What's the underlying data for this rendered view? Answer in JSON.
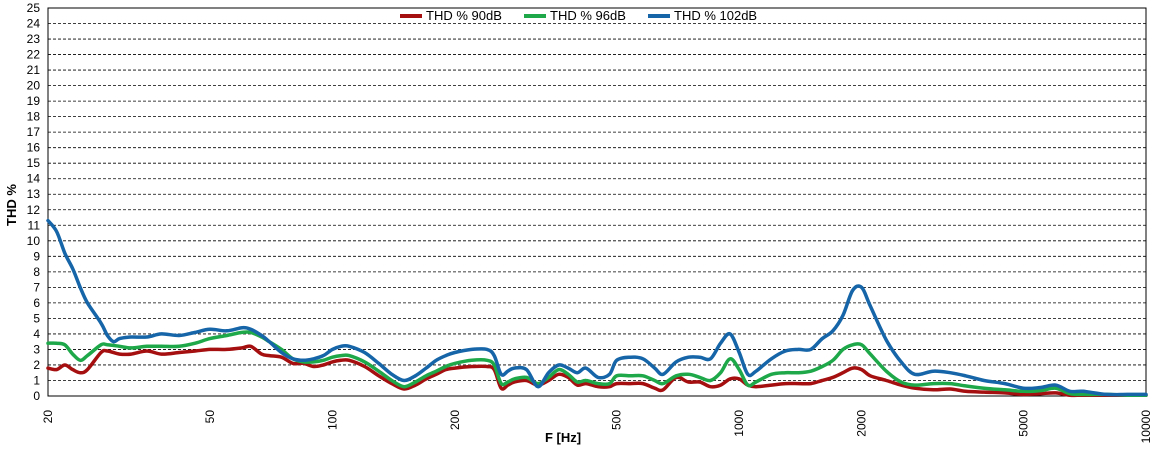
{
  "chart_data": {
    "type": "line",
    "title": "",
    "xlabel": "F [Hz]",
    "ylabel": "THD %",
    "xscale": "log",
    "xlim": [
      20,
      10000
    ],
    "ylim": [
      0,
      25
    ],
    "grid": true,
    "legend_position": "top-center",
    "x_ticks": [
      20,
      50,
      100,
      200,
      500,
      1000,
      2000,
      5000,
      10000
    ],
    "y_ticks": [
      0,
      1,
      2,
      3,
      4,
      5,
      6,
      7,
      8,
      9,
      10,
      11,
      12,
      13,
      14,
      15,
      16,
      17,
      18,
      19,
      20,
      21,
      22,
      23,
      24,
      25
    ],
    "series": [
      {
        "name": "THD % 90dB",
        "color": "#a50f0f",
        "points": [
          [
            20,
            1.8
          ],
          [
            21,
            1.7
          ],
          [
            22,
            2.0
          ],
          [
            23,
            1.7
          ],
          [
            24,
            1.5
          ],
          [
            25,
            1.7
          ],
          [
            27,
            2.8
          ],
          [
            28,
            2.9
          ],
          [
            30,
            2.7
          ],
          [
            32,
            2.7
          ],
          [
            35,
            2.9
          ],
          [
            38,
            2.7
          ],
          [
            42,
            2.8
          ],
          [
            46,
            2.9
          ],
          [
            50,
            3.0
          ],
          [
            55,
            3.0
          ],
          [
            60,
            3.1
          ],
          [
            63,
            3.2
          ],
          [
            67,
            2.7
          ],
          [
            70,
            2.6
          ],
          [
            75,
            2.5
          ],
          [
            80,
            2.1
          ],
          [
            85,
            2.1
          ],
          [
            90,
            1.9
          ],
          [
            95,
            2.0
          ],
          [
            100,
            2.2
          ],
          [
            105,
            2.3
          ],
          [
            110,
            2.3
          ],
          [
            120,
            1.9
          ],
          [
            130,
            1.3
          ],
          [
            140,
            0.8
          ],
          [
            150,
            0.45
          ],
          [
            160,
            0.7
          ],
          [
            170,
            1.1
          ],
          [
            180,
            1.4
          ],
          [
            190,
            1.7
          ],
          [
            200,
            1.8
          ],
          [
            220,
            1.9
          ],
          [
            240,
            1.9
          ],
          [
            250,
            1.7
          ],
          [
            260,
            0.5
          ],
          [
            270,
            0.7
          ],
          [
            280,
            0.9
          ],
          [
            300,
            1.0
          ],
          [
            320,
            0.7
          ],
          [
            340,
            1.0
          ],
          [
            360,
            1.4
          ],
          [
            380,
            1.2
          ],
          [
            400,
            0.7
          ],
          [
            420,
            0.8
          ],
          [
            450,
            0.6
          ],
          [
            480,
            0.6
          ],
          [
            500,
            0.8
          ],
          [
            540,
            0.8
          ],
          [
            580,
            0.8
          ],
          [
            620,
            0.5
          ],
          [
            650,
            0.4
          ],
          [
            700,
            1.2
          ],
          [
            750,
            0.9
          ],
          [
            800,
            0.9
          ],
          [
            850,
            0.6
          ],
          [
            900,
            0.7
          ],
          [
            950,
            1.1
          ],
          [
            1000,
            1.1
          ],
          [
            1050,
            0.7
          ],
          [
            1100,
            0.6
          ],
          [
            1200,
            0.7
          ],
          [
            1300,
            0.8
          ],
          [
            1400,
            0.8
          ],
          [
            1500,
            0.8
          ],
          [
            1600,
            1.0
          ],
          [
            1700,
            1.2
          ],
          [
            1800,
            1.5
          ],
          [
            1900,
            1.8
          ],
          [
            2000,
            1.7
          ],
          [
            2100,
            1.3
          ],
          [
            2300,
            1.0
          ],
          [
            2500,
            0.7
          ],
          [
            2700,
            0.5
          ],
          [
            3000,
            0.4
          ],
          [
            3300,
            0.45
          ],
          [
            3600,
            0.3
          ],
          [
            4000,
            0.25
          ],
          [
            4500,
            0.2
          ],
          [
            5000,
            0.1
          ],
          [
            5500,
            0.15
          ],
          [
            6000,
            0.2
          ],
          [
            6500,
            0.05
          ],
          [
            7000,
            0.05
          ],
          [
            8000,
            0.05
          ],
          [
            9000,
            0.05
          ],
          [
            10000,
            0.05
          ]
        ]
      },
      {
        "name": "THD % 96dB",
        "color": "#1ea84a",
        "points": [
          [
            20,
            3.4
          ],
          [
            21,
            3.4
          ],
          [
            22,
            3.3
          ],
          [
            23,
            2.7
          ],
          [
            24,
            2.3
          ],
          [
            25,
            2.6
          ],
          [
            27,
            3.3
          ],
          [
            28,
            3.3
          ],
          [
            30,
            3.2
          ],
          [
            32,
            3.1
          ],
          [
            35,
            3.2
          ],
          [
            38,
            3.2
          ],
          [
            42,
            3.2
          ],
          [
            46,
            3.4
          ],
          [
            50,
            3.7
          ],
          [
            55,
            3.9
          ],
          [
            60,
            4.1
          ],
          [
            63,
            4.1
          ],
          [
            67,
            3.8
          ],
          [
            70,
            3.5
          ],
          [
            75,
            3.0
          ],
          [
            80,
            2.4
          ],
          [
            85,
            2.2
          ],
          [
            90,
            2.2
          ],
          [
            95,
            2.3
          ],
          [
            100,
            2.5
          ],
          [
            105,
            2.6
          ],
          [
            110,
            2.6
          ],
          [
            120,
            2.2
          ],
          [
            130,
            1.6
          ],
          [
            140,
            1.0
          ],
          [
            150,
            0.6
          ],
          [
            160,
            0.9
          ],
          [
            170,
            1.3
          ],
          [
            180,
            1.6
          ],
          [
            190,
            1.9
          ],
          [
            200,
            2.1
          ],
          [
            220,
            2.3
          ],
          [
            240,
            2.3
          ],
          [
            250,
            2.0
          ],
          [
            260,
            0.8
          ],
          [
            270,
            0.9
          ],
          [
            280,
            1.1
          ],
          [
            300,
            1.2
          ],
          [
            320,
            0.8
          ],
          [
            340,
            1.2
          ],
          [
            360,
            1.7
          ],
          [
            380,
            1.4
          ],
          [
            400,
            0.9
          ],
          [
            420,
            1.0
          ],
          [
            450,
            0.8
          ],
          [
            480,
            0.8
          ],
          [
            500,
            1.3
          ],
          [
            540,
            1.3
          ],
          [
            580,
            1.3
          ],
          [
            620,
            1.0
          ],
          [
            650,
            0.8
          ],
          [
            700,
            1.3
          ],
          [
            750,
            1.4
          ],
          [
            800,
            1.2
          ],
          [
            850,
            1.0
          ],
          [
            900,
            1.5
          ],
          [
            950,
            2.4
          ],
          [
            1000,
            1.7
          ],
          [
            1050,
            0.7
          ],
          [
            1100,
            0.9
          ],
          [
            1200,
            1.4
          ],
          [
            1300,
            1.5
          ],
          [
            1400,
            1.5
          ],
          [
            1500,
            1.6
          ],
          [
            1600,
            1.9
          ],
          [
            1700,
            2.3
          ],
          [
            1800,
            3.0
          ],
          [
            1900,
            3.3
          ],
          [
            2000,
            3.3
          ],
          [
            2100,
            2.7
          ],
          [
            2300,
            1.6
          ],
          [
            2500,
            0.9
          ],
          [
            2700,
            0.7
          ],
          [
            3000,
            0.8
          ],
          [
            3300,
            0.8
          ],
          [
            3600,
            0.65
          ],
          [
            4000,
            0.5
          ],
          [
            4500,
            0.4
          ],
          [
            5000,
            0.3
          ],
          [
            5500,
            0.35
          ],
          [
            6000,
            0.5
          ],
          [
            6500,
            0.15
          ],
          [
            7000,
            0.1
          ],
          [
            8000,
            0.1
          ],
          [
            9000,
            0.05
          ],
          [
            10000,
            0.05
          ]
        ]
      },
      {
        "name": "THD % 102dB",
        "color": "#1565a8",
        "points": [
          [
            20,
            11.3
          ],
          [
            21,
            10.6
          ],
          [
            22,
            9.2
          ],
          [
            23,
            8.2
          ],
          [
            24,
            7.0
          ],
          [
            25,
            6.0
          ],
          [
            27,
            4.7
          ],
          [
            28,
            3.9
          ],
          [
            29,
            3.5
          ],
          [
            30,
            3.7
          ],
          [
            32,
            3.8
          ],
          [
            35,
            3.8
          ],
          [
            38,
            4.0
          ],
          [
            42,
            3.9
          ],
          [
            46,
            4.1
          ],
          [
            50,
            4.3
          ],
          [
            55,
            4.2
          ],
          [
            60,
            4.4
          ],
          [
            63,
            4.3
          ],
          [
            67,
            3.9
          ],
          [
            70,
            3.5
          ],
          [
            75,
            2.8
          ],
          [
            80,
            2.4
          ],
          [
            85,
            2.3
          ],
          [
            90,
            2.4
          ],
          [
            95,
            2.6
          ],
          [
            100,
            3.0
          ],
          [
            105,
            3.2
          ],
          [
            110,
            3.2
          ],
          [
            120,
            2.8
          ],
          [
            130,
            2.1
          ],
          [
            140,
            1.4
          ],
          [
            150,
            1.0
          ],
          [
            160,
            1.3
          ],
          [
            170,
            1.8
          ],
          [
            180,
            2.3
          ],
          [
            190,
            2.6
          ],
          [
            200,
            2.8
          ],
          [
            220,
            3.0
          ],
          [
            240,
            3.0
          ],
          [
            250,
            2.6
          ],
          [
            260,
            1.4
          ],
          [
            270,
            1.6
          ],
          [
            280,
            1.8
          ],
          [
            300,
            1.7
          ],
          [
            320,
            0.6
          ],
          [
            340,
            1.5
          ],
          [
            360,
            2.0
          ],
          [
            380,
            1.8
          ],
          [
            400,
            1.5
          ],
          [
            420,
            1.8
          ],
          [
            450,
            1.2
          ],
          [
            480,
            1.4
          ],
          [
            500,
            2.3
          ],
          [
            540,
            2.5
          ],
          [
            580,
            2.4
          ],
          [
            620,
            1.8
          ],
          [
            650,
            1.4
          ],
          [
            700,
            2.2
          ],
          [
            750,
            2.5
          ],
          [
            800,
            2.5
          ],
          [
            850,
            2.4
          ],
          [
            900,
            3.4
          ],
          [
            950,
            4.0
          ],
          [
            1000,
            2.8
          ],
          [
            1050,
            1.4
          ],
          [
            1100,
            1.6
          ],
          [
            1200,
            2.4
          ],
          [
            1300,
            2.9
          ],
          [
            1400,
            3.0
          ],
          [
            1500,
            3.0
          ],
          [
            1600,
            3.7
          ],
          [
            1700,
            4.2
          ],
          [
            1800,
            5.2
          ],
          [
            1900,
            6.8
          ],
          [
            2000,
            7.0
          ],
          [
            2100,
            5.8
          ],
          [
            2300,
            3.6
          ],
          [
            2500,
            2.2
          ],
          [
            2700,
            1.4
          ],
          [
            3000,
            1.6
          ],
          [
            3300,
            1.5
          ],
          [
            3600,
            1.3
          ],
          [
            4000,
            1.0
          ],
          [
            4500,
            0.8
          ],
          [
            5000,
            0.5
          ],
          [
            5500,
            0.55
          ],
          [
            6000,
            0.7
          ],
          [
            6500,
            0.3
          ],
          [
            7000,
            0.3
          ],
          [
            8000,
            0.1
          ],
          [
            9000,
            0.1
          ],
          [
            10000,
            0.1
          ]
        ]
      }
    ]
  }
}
